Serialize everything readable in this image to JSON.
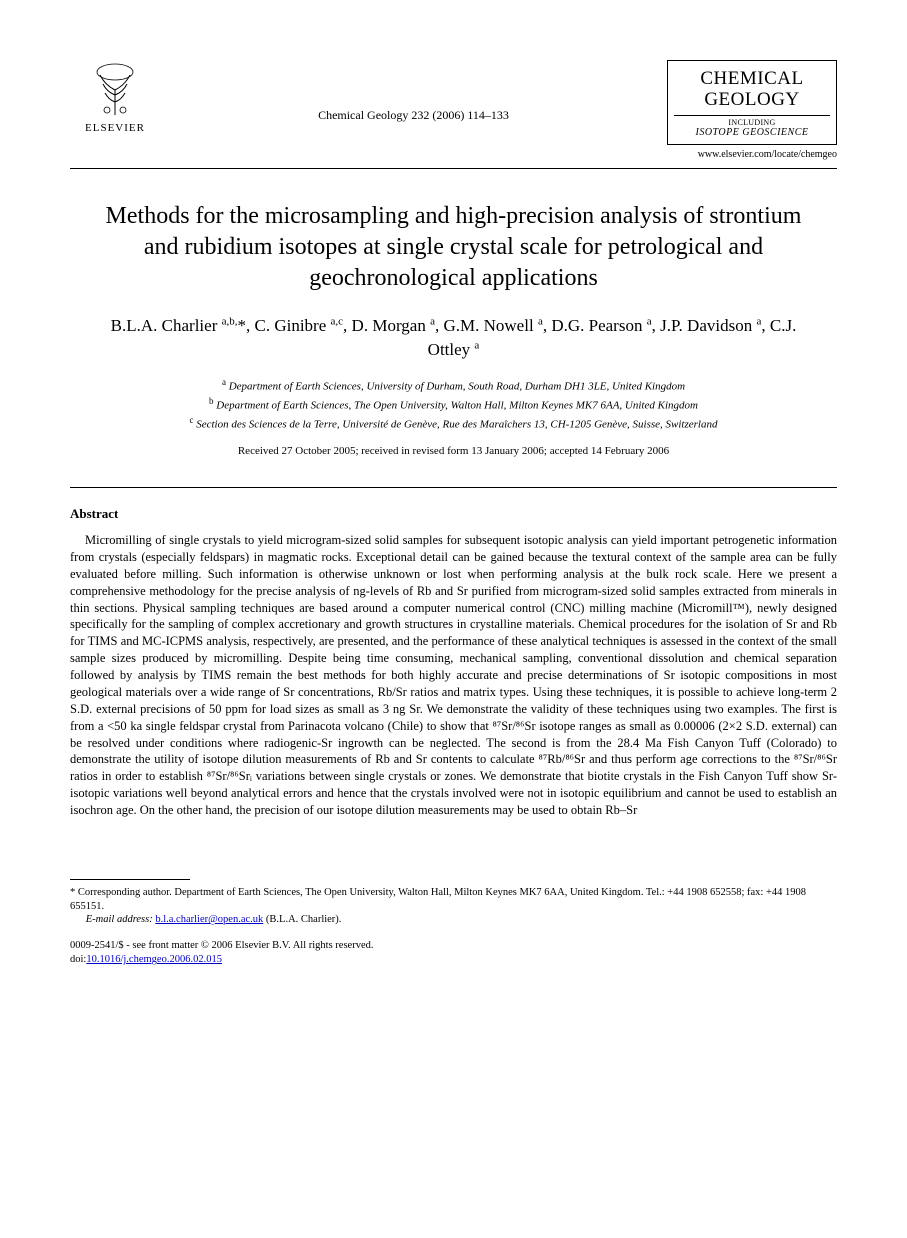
{
  "header": {
    "publisher_label": "ELSEVIER",
    "citation": "Chemical Geology 232 (2006) 114–133",
    "journal_title_line1": "CHEMICAL",
    "journal_title_line2": "GEOLOGY",
    "journal_sub1": "INCLUDING",
    "journal_sub2": "ISOTOPE GEOSCIENCE",
    "journal_url": "www.elsevier.com/locate/chemgeo"
  },
  "article": {
    "title": "Methods for the microsampling and high-precision analysis of strontium and rubidium isotopes at single crystal scale for petrological and geochronological applications",
    "authors_html": "B.L.A. Charlier <sup>a,b,</sup>*, C. Ginibre <sup>a,c</sup>, D. Morgan <sup>a</sup>, G.M. Nowell <sup>a</sup>, D.G. Pearson <sup>a</sup>, J.P. Davidson <sup>a</sup>, C.J. Ottley <sup>a</sup>",
    "affiliations": [
      {
        "sup": "a",
        "text": "Department of Earth Sciences, University of Durham, South Road, Durham DH1 3LE, United Kingdom"
      },
      {
        "sup": "b",
        "text": "Department of Earth Sciences, The Open University, Walton Hall, Milton Keynes MK7 6AA, United Kingdom"
      },
      {
        "sup": "c",
        "text": "Section des Sciences de la Terre, Université de Genève, Rue des Maraîchers 13, CH-1205 Genève, Suisse, Switzerland"
      }
    ],
    "dates": "Received 27 October 2005; received in revised form 13 January 2006; accepted 14 February 2006"
  },
  "abstract": {
    "heading": "Abstract",
    "body": "Micromilling of single crystals to yield microgram-sized solid samples for subsequent isotopic analysis can yield important petrogenetic information from crystals (especially feldspars) in magmatic rocks. Exceptional detail can be gained because the textural context of the sample area can be fully evaluated before milling. Such information is otherwise unknown or lost when performing analysis at the bulk rock scale. Here we present a comprehensive methodology for the precise analysis of ng-levels of Rb and Sr purified from microgram-sized solid samples extracted from minerals in thin sections. Physical sampling techniques are based around a computer numerical control (CNC) milling machine (Micromill™), newly designed specifically for the sampling of complex accretionary and growth structures in crystalline materials. Chemical procedures for the isolation of Sr and Rb for TIMS and MC-ICPMS analysis, respectively, are presented, and the performance of these analytical techniques is assessed in the context of the small sample sizes produced by micromilling. Despite being time consuming, mechanical sampling, conventional dissolution and chemical separation followed by analysis by TIMS remain the best methods for both highly accurate and precise determinations of Sr isotopic compositions in most geological materials over a wide range of Sr concentrations, Rb/Sr ratios and matrix types. Using these techniques, it is possible to achieve long-term 2 S.D. external precisions of 50 ppm for load sizes as small as 3 ng Sr. We demonstrate the validity of these techniques using two examples. The first is from a <50 ka single feldspar crystal from Parinacota volcano (Chile) to show that ⁸⁷Sr/⁸⁶Sr isotope ranges as small as 0.00006 (2×2 S.D. external) can be resolved under conditions where radiogenic-Sr ingrowth can be neglected. The second is from the 28.4 Ma Fish Canyon Tuff (Colorado) to demonstrate the utility of isotope dilution measurements of Rb and Sr contents to calculate ⁸⁷Rb/⁸⁶Sr and thus perform age corrections to the ⁸⁷Sr/⁸⁶Sr ratios in order to establish ⁸⁷Sr/⁸⁶Srᵢ variations between single crystals or zones. We demonstrate that biotite crystals in the Fish Canyon Tuff show Sr-isotopic variations well beyond analytical errors and hence that the crystals involved were not in isotopic equilibrium and cannot be used to establish an isochron age. On the other hand, the precision of our isotope dilution measurements may be used to obtain Rb–Sr"
  },
  "footer": {
    "corresponding": "* Corresponding author. Department of Earth Sciences, The Open University, Walton Hall, Milton Keynes MK7 6AA, United Kingdom. Tel.: +44 1908 652558; fax: +44 1908 655151.",
    "email_label": "E-mail address:",
    "email": "b.l.a.charlier@open.ac.uk",
    "email_attrib": "(B.L.A. Charlier).",
    "issn_line": "0009-2541/$ - see front matter © 2006 Elsevier B.V. All rights reserved.",
    "doi_label": "doi:",
    "doi": "10.1016/j.chemgeo.2006.02.015"
  },
  "colors": {
    "text": "#000000",
    "background": "#ffffff",
    "link": "#0000cc",
    "rule": "#000000"
  },
  "typography": {
    "base_family": "Times New Roman",
    "title_fontsize": 24,
    "authors_fontsize": 17,
    "affil_fontsize": 11,
    "abstract_fontsize": 12.5,
    "footer_fontsize": 10.5
  }
}
